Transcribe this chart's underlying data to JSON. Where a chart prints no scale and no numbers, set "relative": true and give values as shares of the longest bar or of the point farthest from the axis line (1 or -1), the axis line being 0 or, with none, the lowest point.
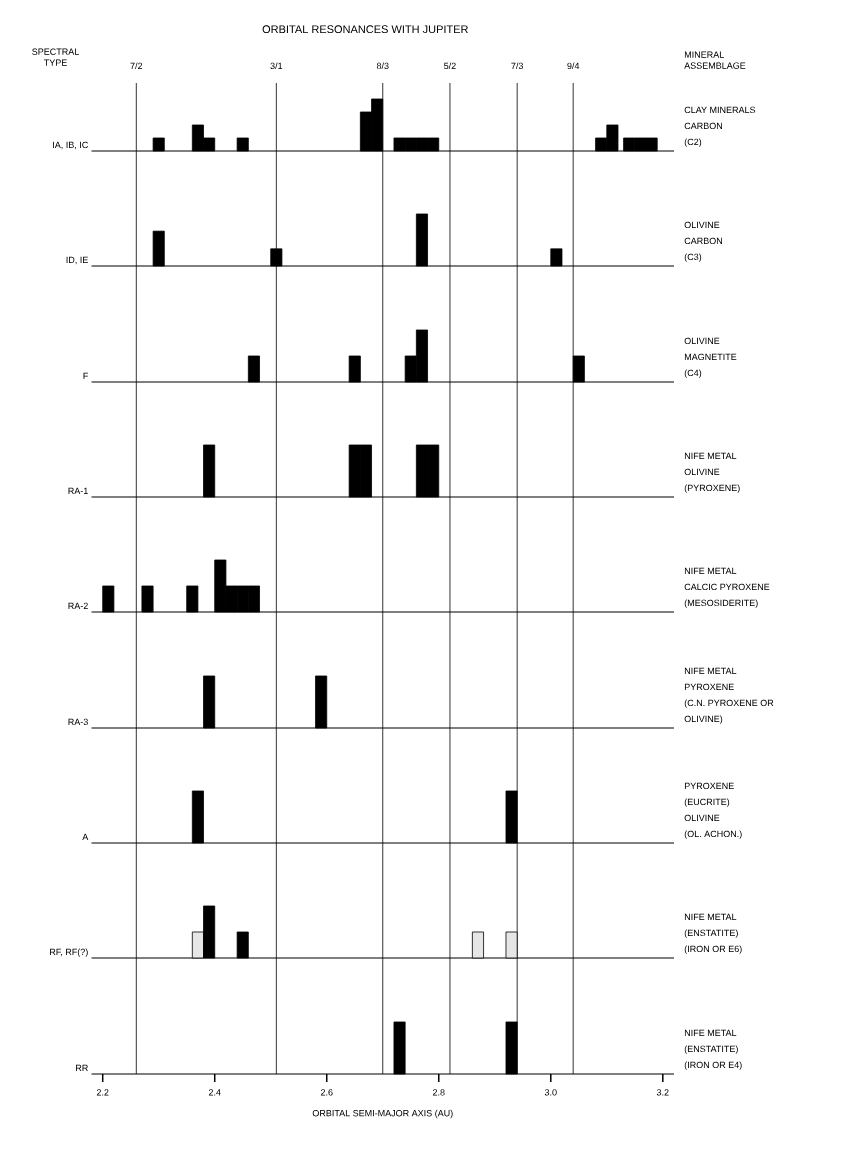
{
  "chart_data": [
    {
      "type": "bar",
      "relative": true,
      "title": "ORBITAL RESONANCES WITH JUPITER",
      "ylabel": "IA, IB, IC",
      "xlim": [
        2.18,
        3.22
      ],
      "tick_labels": false,
      "annotations": [
        "SPECTRAL TYPE",
        "MINERAL ASSEMBLAGE",
        "7/2",
        "3/1",
        "8/3",
        "5/2",
        "7/3",
        "9/4",
        "CLAY MINERALS",
        "CARBON",
        "(C2)"
      ],
      "ref_lines": [
        {
          "axis": "x",
          "value": 2.26
        },
        {
          "axis": "x",
          "value": 2.51
        },
        {
          "axis": "x",
          "value": 2.7
        },
        {
          "axis": "x",
          "value": 2.82
        },
        {
          "axis": "x",
          "value": 2.94
        },
        {
          "axis": "x",
          "value": 3.04
        }
      ],
      "series": [
        {
          "color": "#000000",
          "x": [
            2.3,
            2.37,
            2.39,
            2.45,
            2.67,
            2.69,
            2.73,
            2.75,
            2.77,
            2.79,
            3.09,
            3.11,
            3.14,
            3.16,
            3.18
          ],
          "values": [
            0.25,
            0.5,
            0.25,
            0.25,
            0.75,
            1,
            0.25,
            0.25,
            0.25,
            0.25,
            0.25,
            0.5,
            0.25,
            0.25,
            0.25
          ]
        }
      ]
    },
    {
      "type": "bar",
      "relative": true,
      "ylabel": "ID, IE",
      "xlim": [
        2.18,
        3.22
      ],
      "tick_labels": false,
      "annotations": [
        "OLIVINE",
        "CARBON",
        "(C3)"
      ],
      "ref_lines": [
        {
          "axis": "x",
          "value": 2.26
        },
        {
          "axis": "x",
          "value": 2.51
        },
        {
          "axis": "x",
          "value": 2.7
        },
        {
          "axis": "x",
          "value": 2.82
        },
        {
          "axis": "x",
          "value": 2.94
        },
        {
          "axis": "x",
          "value": 3.04
        }
      ],
      "series": [
        {
          "color": "#000000",
          "x": [
            2.3,
            2.51,
            2.77,
            3.01
          ],
          "values": [
            0.67,
            0.33,
            1,
            0.33
          ]
        }
      ]
    },
    {
      "type": "bar",
      "relative": true,
      "ylabel": "F",
      "xlim": [
        2.18,
        3.22
      ],
      "tick_labels": false,
      "annotations": [
        "OLIVINE",
        "MAGNETITE",
        "(C4)"
      ],
      "ref_lines": [
        {
          "axis": "x",
          "value": 2.26
        },
        {
          "axis": "x",
          "value": 2.51
        },
        {
          "axis": "x",
          "value": 2.7
        },
        {
          "axis": "x",
          "value": 2.82
        },
        {
          "axis": "x",
          "value": 2.94
        },
        {
          "axis": "x",
          "value": 3.04
        }
      ],
      "series": [
        {
          "color": "#000000",
          "x": [
            2.47,
            2.65,
            2.75,
            2.77,
            3.05
          ],
          "values": [
            0.5,
            0.5,
            0.5,
            1,
            0.5
          ]
        }
      ]
    },
    {
      "type": "bar",
      "relative": true,
      "ylabel": "RA-1",
      "xlim": [
        2.18,
        3.22
      ],
      "tick_labels": false,
      "annotations": [
        "NIFE METAL",
        "OLIVINE",
        "(PYROXENE)"
      ],
      "ref_lines": [
        {
          "axis": "x",
          "value": 2.26
        },
        {
          "axis": "x",
          "value": 2.51
        },
        {
          "axis": "x",
          "value": 2.7
        },
        {
          "axis": "x",
          "value": 2.82
        },
        {
          "axis": "x",
          "value": 2.94
        },
        {
          "axis": "x",
          "value": 3.04
        }
      ],
      "series": [
        {
          "color": "#000000",
          "x": [
            2.39,
            2.65,
            2.67,
            2.77,
            2.79
          ],
          "values": [
            1,
            1,
            1,
            1,
            1
          ]
        }
      ]
    },
    {
      "type": "bar",
      "relative": true,
      "ylabel": "RA-2",
      "xlim": [
        2.18,
        3.22
      ],
      "tick_labels": false,
      "annotations": [
        "NIFE METAL",
        "CALCIC PYROXENE",
        "(MESOSIDERITE)"
      ],
      "ref_lines": [
        {
          "axis": "x",
          "value": 2.26
        },
        {
          "axis": "x",
          "value": 2.51
        },
        {
          "axis": "x",
          "value": 2.7
        },
        {
          "axis": "x",
          "value": 2.82
        },
        {
          "axis": "x",
          "value": 2.94
        },
        {
          "axis": "x",
          "value": 3.04
        }
      ],
      "series": [
        {
          "color": "#000000",
          "x": [
            2.21,
            2.28,
            2.36,
            2.41,
            2.43,
            2.45,
            2.47
          ],
          "values": [
            0.5,
            0.5,
            0.5,
            1,
            0.5,
            0.5,
            0.5
          ]
        }
      ]
    },
    {
      "type": "bar",
      "relative": true,
      "ylabel": "RA-3",
      "xlim": [
        2.18,
        3.22
      ],
      "tick_labels": false,
      "annotations": [
        "NIFE METAL",
        "PYROXENE",
        "(C.N. PYROXENE OR",
        "OLIVINE)"
      ],
      "ref_lines": [
        {
          "axis": "x",
          "value": 2.26
        },
        {
          "axis": "x",
          "value": 2.51
        },
        {
          "axis": "x",
          "value": 2.7
        },
        {
          "axis": "x",
          "value": 2.82
        },
        {
          "axis": "x",
          "value": 2.94
        },
        {
          "axis": "x",
          "value": 3.04
        }
      ],
      "series": [
        {
          "color": "#000000",
          "x": [
            2.39,
            2.59
          ],
          "values": [
            1,
            1
          ]
        }
      ]
    },
    {
      "type": "bar",
      "relative": true,
      "ylabel": "A",
      "xlim": [
        2.18,
        3.22
      ],
      "tick_labels": false,
      "annotations": [
        "PYROXENE",
        "(EUCRITE)",
        "OLIVINE",
        "(OL. ACHON.)"
      ],
      "ref_lines": [
        {
          "axis": "x",
          "value": 2.26
        },
        {
          "axis": "x",
          "value": 2.51
        },
        {
          "axis": "x",
          "value": 2.7
        },
        {
          "axis": "x",
          "value": 2.82
        },
        {
          "axis": "x",
          "value": 2.94
        },
        {
          "axis": "x",
          "value": 3.04
        }
      ],
      "series": [
        {
          "color": "#000000",
          "x": [
            2.37,
            2.93
          ],
          "values": [
            1,
            1
          ]
        }
      ]
    },
    {
      "type": "bar",
      "relative": true,
      "ylabel": "RF, RF(?)",
      "xlim": [
        2.18,
        3.22
      ],
      "tick_labels": false,
      "annotations": [
        "NIFE METAL",
        "(ENSTATITE)",
        "(IRON OR E6)"
      ],
      "ref_lines": [
        {
          "axis": "x",
          "value": 2.26
        },
        {
          "axis": "x",
          "value": 2.51
        },
        {
          "axis": "x",
          "value": 2.7
        },
        {
          "axis": "x",
          "value": 2.82
        },
        {
          "axis": "x",
          "value": 2.94
        },
        {
          "axis": "x",
          "value": 3.04
        }
      ],
      "series": [
        {
          "color": "#e6e6e6",
          "x": [
            2.37,
            2.87,
            2.93
          ],
          "values": [
            0.5,
            0.5,
            0.5
          ]
        },
        {
          "color": "#000000",
          "x": [
            2.39,
            2.45
          ],
          "values": [
            1,
            0.5
          ]
        }
      ]
    },
    {
      "type": "bar",
      "relative": true,
      "ylabel": "RR",
      "xlim": [
        2.18,
        3.22
      ],
      "tick_labels": "x",
      "xticks": [
        2.2,
        2.4,
        2.6,
        2.8,
        {
          "value": 3.0,
          "label": "3.0"
        },
        3.2
      ],
      "xlabel": "ORBITAL SEMI-MAJOR AXIS (AU)",
      "annotations": [
        "NIFE METAL",
        "(ENSTATITE)",
        "(IRON OR E4)"
      ],
      "ref_lines": [
        {
          "axis": "x",
          "value": 2.26
        },
        {
          "axis": "x",
          "value": 2.51
        },
        {
          "axis": "x",
          "value": 2.7
        },
        {
          "axis": "x",
          "value": 2.82
        },
        {
          "axis": "x",
          "value": 2.94
        },
        {
          "axis": "x",
          "value": 3.04
        }
      ],
      "series": [
        {
          "color": "#000000",
          "x": [
            2.73,
            2.93
          ],
          "values": [
            1,
            1
          ]
        }
      ]
    }
  ]
}
